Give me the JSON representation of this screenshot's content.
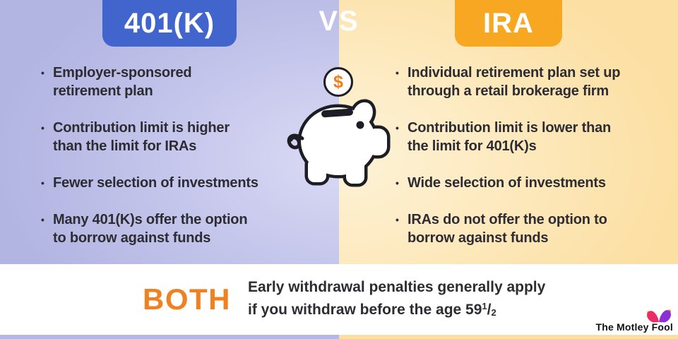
{
  "header": {
    "left_title": "401(K)",
    "vs_label": "VS",
    "right_title": "IRA"
  },
  "columns": {
    "left_column": {
      "bullets": [
        [
          "Employer-sponsored",
          "retirement plan"
        ],
        [
          "Contribution limit is higher",
          "than the limit for IRAs"
        ],
        [
          "Fewer selection of investments"
        ],
        [
          "Many 401(K)s offer the option",
          "to borrow against funds"
        ]
      ]
    },
    "right_column": {
      "bullets": [
        [
          "Individual retirement plan set up",
          "through a retail brokerage firm"
        ],
        [
          "Contribution limit is lower than",
          "the limit for 401(K)s"
        ],
        [
          "Wide selection of investments"
        ],
        [
          "IRAs do not offer the option to",
          "borrow against funds"
        ]
      ]
    }
  },
  "center_graphic": {
    "coin_symbol": "$",
    "piggy_icon": "piggy-bank"
  },
  "footer": {
    "both_label": "BOTH",
    "line1": "Early withdrawal penalties generally apply",
    "line2_prefix": "if you withdraw before the age 59",
    "fraction_numerator": "1",
    "fraction_slash": "/",
    "fraction_denominator": "2"
  },
  "branding": {
    "logo_text": "The Motley Fool"
  },
  "ui": {
    "bullet_glyph": "•"
  },
  "colors": {
    "left_panel": "#b3b5e3",
    "right_panel": "#fcdfa2",
    "left_header_box": "#4164cd",
    "right_header_box": "#f8a722",
    "both_label": "#ef8123",
    "body_text": "#2d2c33",
    "outline": "#1d1d26",
    "coin_dollar": "#ee7f1f",
    "logo_hat_pink": "#ed2b64",
    "logo_hat_purple": "#8b2fd6",
    "logo_dot_yellow": "#f9b21a",
    "logo_dot_orange": "#f6871f"
  }
}
